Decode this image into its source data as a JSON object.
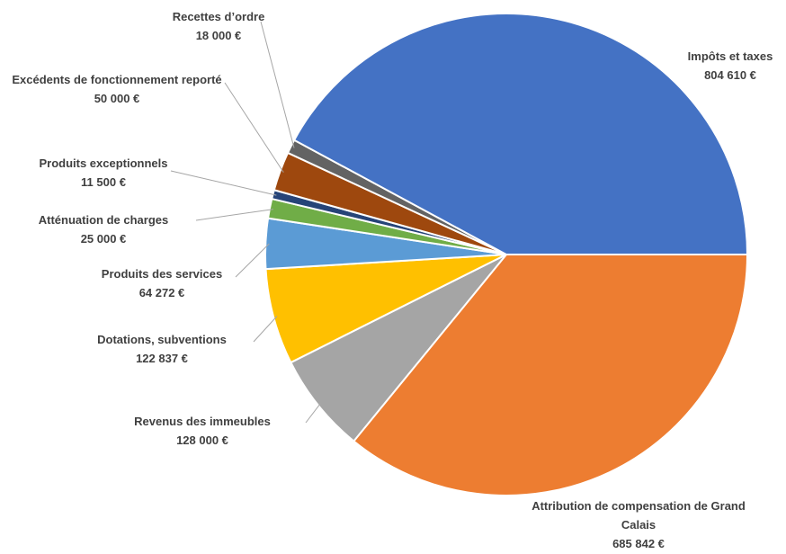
{
  "chart_data": {
    "type": "pie",
    "categories": [
      "Attribution de compensation de Grand Calais",
      "Revenus des immeubles",
      "Dotations, subventions",
      "Produits des services",
      "Atténuation de charges",
      "Produits exceptionnels",
      "Excédents de fonctionnement reporté",
      "Recettes d’ordre",
      "Impôts et taxes"
    ],
    "values": [
      685842,
      128000,
      122837,
      64272,
      25000,
      11500,
      50000,
      18000,
      804610
    ],
    "value_labels": [
      "685 842 €",
      "128 000 €",
      "122 837 €",
      "64 272 €",
      "25 000 €",
      "11 500 €",
      "50 000 €",
      "18 000 €",
      "804 610 €"
    ],
    "colors": [
      "#ed7d31",
      "#a5a5a5",
      "#ffc000",
      "#5b9bd5",
      "#70ad47",
      "#264478",
      "#9e480e",
      "#636363",
      "#4472c4"
    ]
  }
}
